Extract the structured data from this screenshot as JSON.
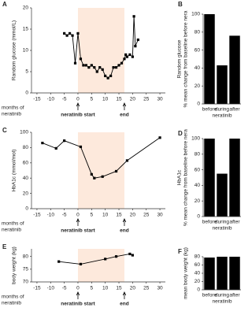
{
  "chart_data": [
    {
      "type": "line",
      "panel": "A",
      "ylabel": [
        "Random glucose (mmol/L)"
      ],
      "xlabel": [
        "months of",
        "neratinib"
      ],
      "x": [
        -5,
        -4,
        -3,
        -2,
        -1,
        0,
        1,
        2,
        3,
        4,
        5,
        6,
        7,
        8,
        9,
        10,
        11,
        12,
        13,
        14,
        15,
        16,
        17,
        17.5,
        18,
        19,
        20,
        20.5,
        21,
        22
      ],
      "series": [
        {
          "color": "#000000",
          "values": [
            14,
            13.5,
            14,
            13.5,
            7,
            14,
            8,
            6.5,
            6.5,
            6,
            6.5,
            6,
            5,
            6,
            5.5,
            4,
            3.5,
            4,
            6,
            6,
            6.5,
            7,
            8,
            9,
            8.5,
            9,
            8.5,
            18,
            11,
            12.5
          ]
        }
      ],
      "xlim": [
        -17,
        32
      ],
      "xticks": [
        -15,
        -10,
        -5,
        0,
        5,
        10,
        15,
        20,
        25,
        30
      ],
      "ylim": [
        0,
        20
      ],
      "yticks": [
        0,
        5,
        10,
        15,
        20
      ],
      "shaded_x": [
        0,
        17
      ],
      "shade_color": "#fde9dc",
      "annotations": [
        {
          "text": "neratinib start",
          "x": 0
        },
        {
          "text": "end",
          "x": 17
        }
      ]
    },
    {
      "type": "bar",
      "panel": "B",
      "ylabel": [
        "Random glucose",
        "% mean change from baseline before nera"
      ],
      "xlabel": [
        "neratinib"
      ],
      "categories": [
        "before",
        "during",
        "after"
      ],
      "values": [
        100,
        43,
        76
      ],
      "color": "#000000",
      "ylim": [
        0,
        100
      ],
      "yticks": [
        0,
        20,
        40,
        60,
        80,
        100
      ]
    },
    {
      "type": "line",
      "panel": "C",
      "ylabel": [
        "HbA1c (mmol/mol)"
      ],
      "xlabel": [
        "months of",
        "neratinib"
      ],
      "x": [
        -13,
        -8,
        -5,
        1,
        5,
        6,
        9,
        14,
        18,
        30
      ],
      "series": [
        {
          "color": "#000000",
          "values": [
            86,
            79,
            89,
            81,
            45,
            40,
            42,
            49,
            63,
            93
          ]
        }
      ],
      "xlim": [
        -17,
        32
      ],
      "xticks": [
        -15,
        -10,
        -5,
        0,
        5,
        10,
        15,
        20,
        25,
        30
      ],
      "ylim": [
        0,
        100
      ],
      "yticks": [
        0,
        20,
        40,
        60,
        80,
        100
      ],
      "shaded_x": [
        0,
        17
      ],
      "shade_color": "#fde9dc",
      "annotations": [
        {
          "text": "neratinib start",
          "x": 0
        },
        {
          "text": "end",
          "x": 17
        }
      ]
    },
    {
      "type": "bar",
      "panel": "D",
      "ylabel": [
        "HbA1c",
        "% mean change from baseline before nera"
      ],
      "xlabel": [
        "neratinib"
      ],
      "categories": [
        "before",
        "during",
        "after"
      ],
      "values": [
        100,
        55,
        100
      ],
      "color": "#000000",
      "ylim": [
        0,
        100
      ],
      "yticks": [
        0,
        20,
        40,
        60,
        80,
        100
      ]
    },
    {
      "type": "line",
      "panel": "E",
      "ylabel": [
        "body weight (kg)"
      ],
      "xlabel": [
        "months of",
        "neratinib"
      ],
      "x": [
        -7,
        1,
        10,
        14,
        19,
        20
      ],
      "series": [
        {
          "color": "#000000",
          "values": [
            78,
            77,
            79,
            80,
            81,
            80.5
          ]
        }
      ],
      "xlim": [
        -17,
        32
      ],
      "xticks": [
        -15,
        -10,
        -5,
        0,
        5,
        10,
        15,
        20,
        25,
        30
      ],
      "ylim": [
        70,
        83
      ],
      "yticks": [
        70,
        75,
        80
      ],
      "shaded_x": [
        0,
        17
      ],
      "shade_color": "#fde9dc",
      "annotations": [
        {
          "text": "neratinib start",
          "x": 0
        },
        {
          "text": "end",
          "x": 17
        }
      ]
    },
    {
      "type": "bar",
      "panel": "F",
      "ylabel": [
        "mean body weight (kg)"
      ],
      "xlabel": [
        "neratinib"
      ],
      "categories": [
        "before",
        "during",
        "after"
      ],
      "values": [
        78,
        80,
        80
      ],
      "color": "#000000",
      "ylim": [
        0,
        80
      ],
      "yticks": [
        0,
        20,
        40,
        60,
        80
      ]
    }
  ]
}
